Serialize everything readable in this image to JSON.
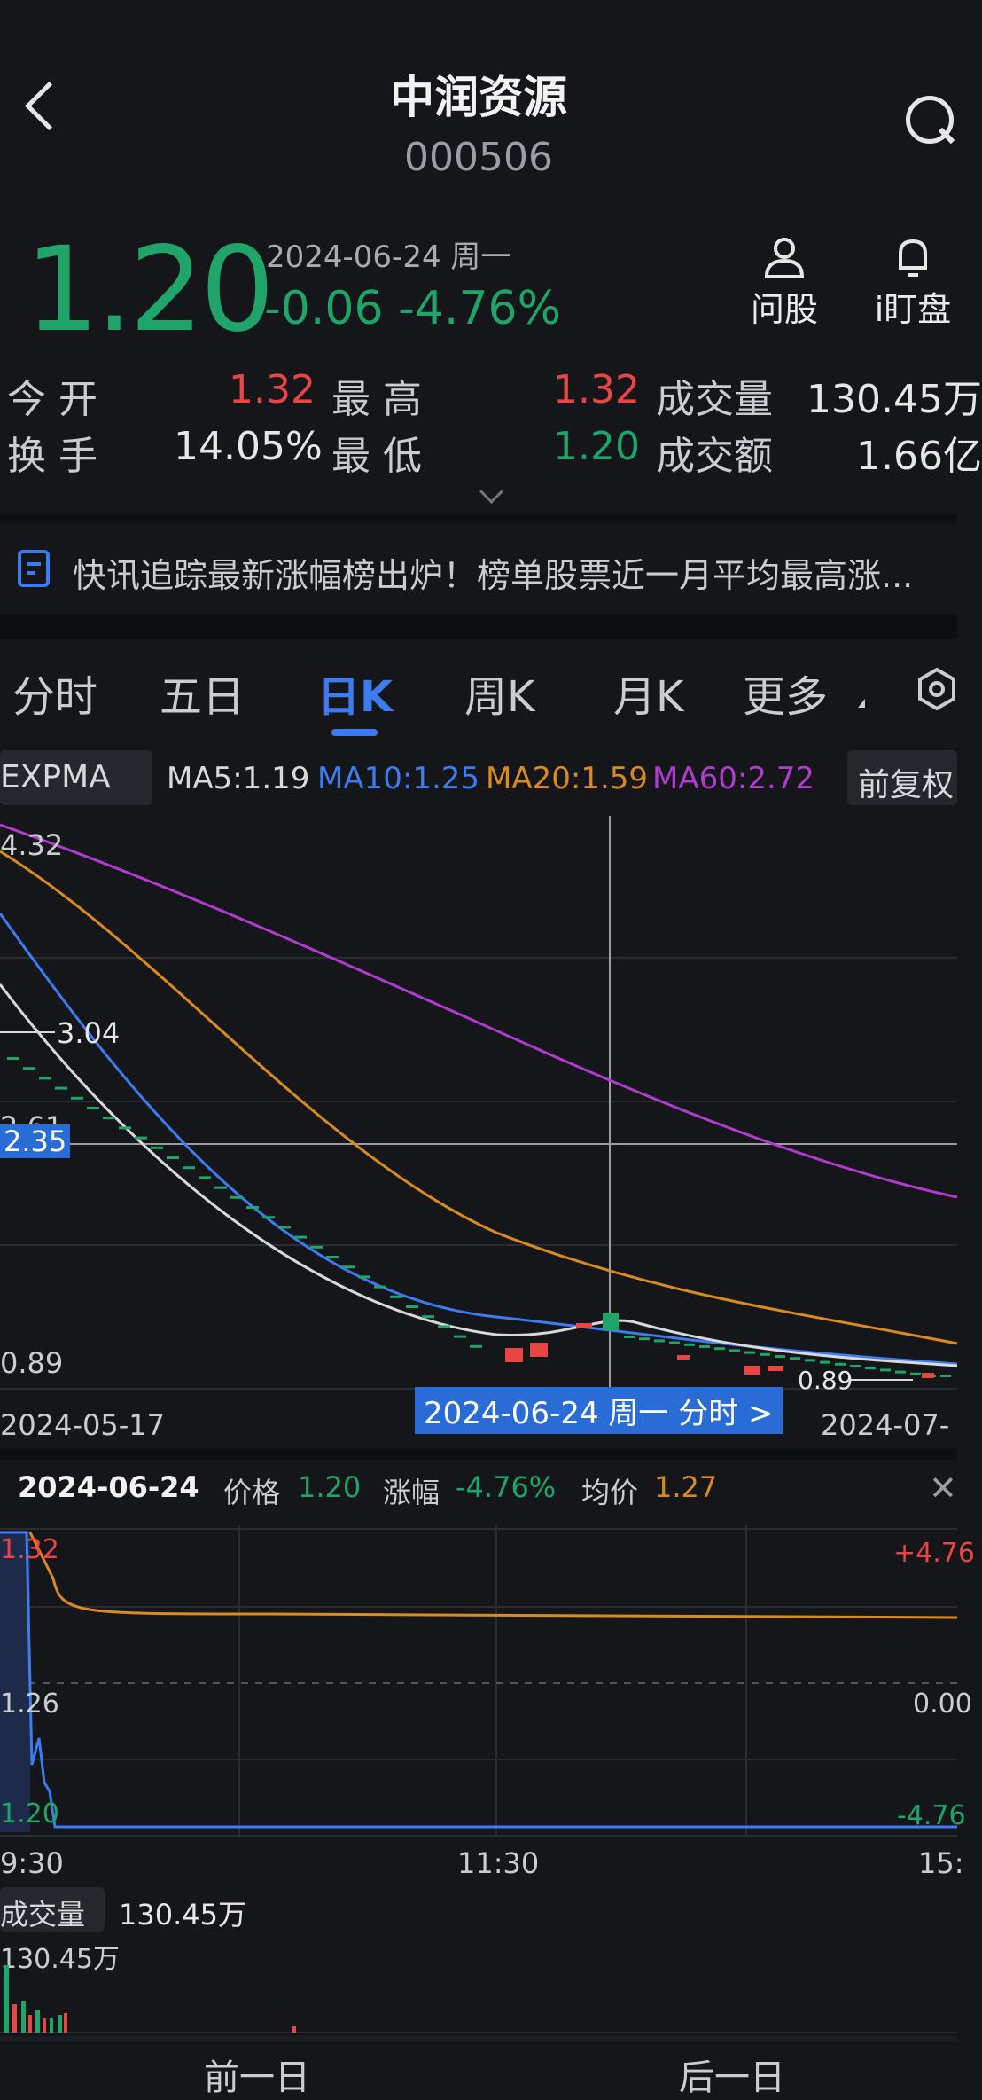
{
  "header": {
    "title": "中润资源",
    "code": "000506"
  },
  "quote": {
    "price": "1.20",
    "date_label": "2024-06-24 周一",
    "change": "-0.06 -4.76%",
    "ask_label": "问股",
    "watch_label": "i盯盘"
  },
  "stats": {
    "open_label": "今 开",
    "open_value": "1.32",
    "high_label": "最 高",
    "high_value": "1.32",
    "volume_label": "成交量",
    "volume_value": "130.45万",
    "turnover_label": "换 手",
    "turnover_value": "14.05%",
    "low_label": "最 低",
    "low_value": "1.20",
    "amount_label": "成交额",
    "amount_value": "1.66亿"
  },
  "news": {
    "text": "快讯追踪最新涨幅榜出炉！榜单股票近一月平均最高涨..."
  },
  "tabs": [
    "分时",
    "五日",
    "日K",
    "周K",
    "月K",
    "更多"
  ],
  "indicators": {
    "select": "EXPMA",
    "ma5": "MA5:1.19",
    "ma10": "MA10:1.25",
    "ma20": "MA20:1.59",
    "ma60": "MA60:2.72",
    "adjust": "前复权"
  },
  "kchart": {
    "label_top": "4.32",
    "label_max": "3.04",
    "label_mid_a": "2.61",
    "label_cross": "2.35",
    "label_min_left": "0.89",
    "label_min": "0.89",
    "date_left": "2024-05-17",
    "date_right": "2024-07-",
    "cross_date": "2024-06-24 周一 分时 >"
  },
  "intraday": {
    "date": "2024-06-24",
    "price_label": "价格",
    "price_value": "1.20",
    "pct_label": "涨幅",
    "pct_value": "-4.76%",
    "avg_label": "均价",
    "avg_value": "1.27",
    "y_top": "1.32",
    "y_mid": "1.26",
    "y_bot": "1.20",
    "r_top": "+4.76",
    "r_mid": "0.00",
    "r_bot": "-4.76",
    "t_start": "9:30",
    "t_mid": "11:30",
    "t_end": "15:",
    "vol_label": "成交量",
    "vol_value": "130.45万",
    "vol_axis": "130.45万"
  },
  "footer": {
    "prev": "前一日",
    "next": "后一日"
  },
  "colors": {
    "bg": "#151619",
    "red": "#e84545",
    "green": "#1fa56a",
    "ma5": "#d9d9d9",
    "ma10": "#3d7bf0",
    "ma20": "#d98b1f",
    "ma60": "#b03ccf"
  }
}
